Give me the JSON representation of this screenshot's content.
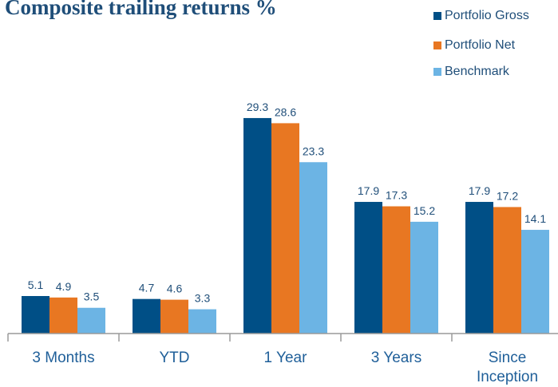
{
  "chart_data": {
    "type": "bar",
    "title": "Composite trailing returns %",
    "categories": [
      "3 Months",
      "YTD",
      "1 Year",
      "3 Years",
      "Since Inception"
    ],
    "series": [
      {
        "name": "Portfolio Gross",
        "color": "#004f86",
        "values": [
          5.1,
          4.7,
          29.3,
          17.9,
          17.9
        ]
      },
      {
        "name": "Portfolio Net",
        "color": "#e87722",
        "values": [
          4.9,
          4.6,
          28.6,
          17.3,
          17.2
        ]
      },
      {
        "name": "Benchmark",
        "color": "#6cb4e4",
        "values": [
          3.5,
          3.3,
          23.3,
          15.2,
          14.1
        ]
      }
    ],
    "ylim": [
      0,
      30
    ]
  }
}
